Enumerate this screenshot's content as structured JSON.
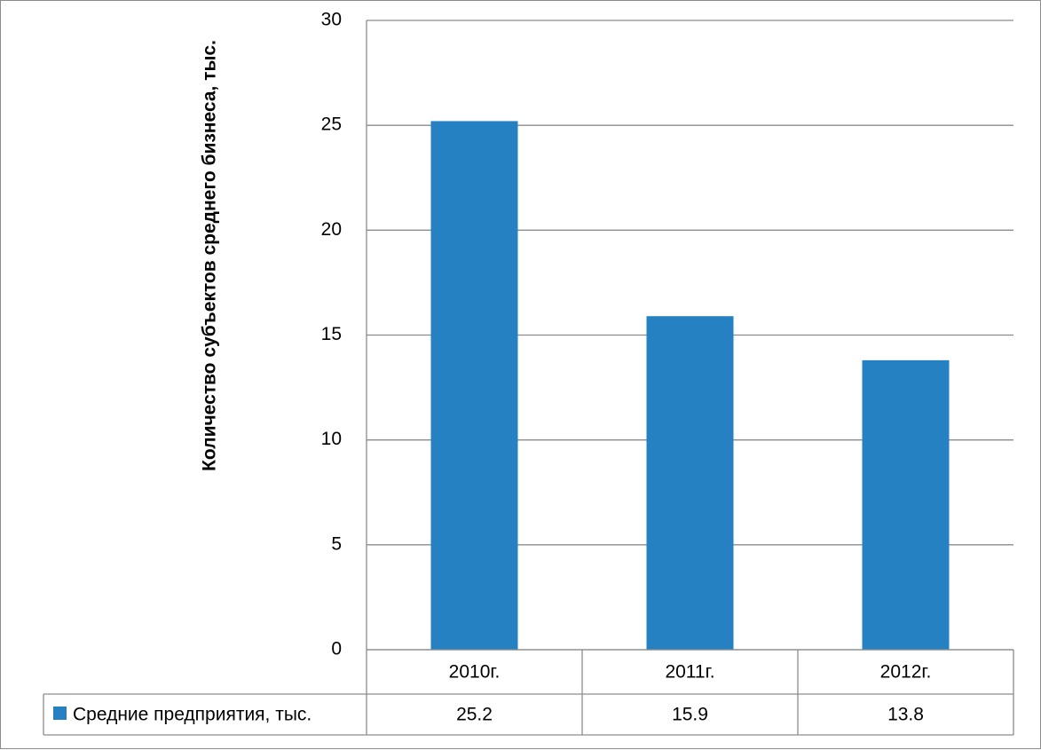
{
  "chart_data": {
    "type": "bar",
    "ylabel": "Количество субъектов среднего бизнеса, тыс.",
    "categories": [
      "2010г.",
      "2011г.",
      "2012г."
    ],
    "series": [
      {
        "name": "Средние предприятия, тыс.",
        "values": [
          25.2,
          15.9,
          13.8
        ],
        "color": "#2681c2"
      }
    ],
    "ylim": [
      0,
      30
    ],
    "yticks": [
      0,
      5,
      10,
      15,
      20,
      25,
      30
    ],
    "value_labels": [
      "25.2",
      "15.9",
      "13.8"
    ],
    "grid": true,
    "legend": "data-table"
  }
}
